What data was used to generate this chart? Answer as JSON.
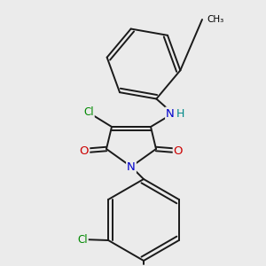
{
  "background_color": "#ebebeb",
  "atom_colors": {
    "C": "#000000",
    "N": "#0000cc",
    "O": "#cc0000",
    "Cl": "#008800",
    "H": "#008888"
  },
  "bond_color": "#1a1a1a",
  "bond_width": 1.4,
  "font_size_atom": 8.5,
  "fig_w": 3.0,
  "fig_h": 3.0,
  "dpi": 100
}
